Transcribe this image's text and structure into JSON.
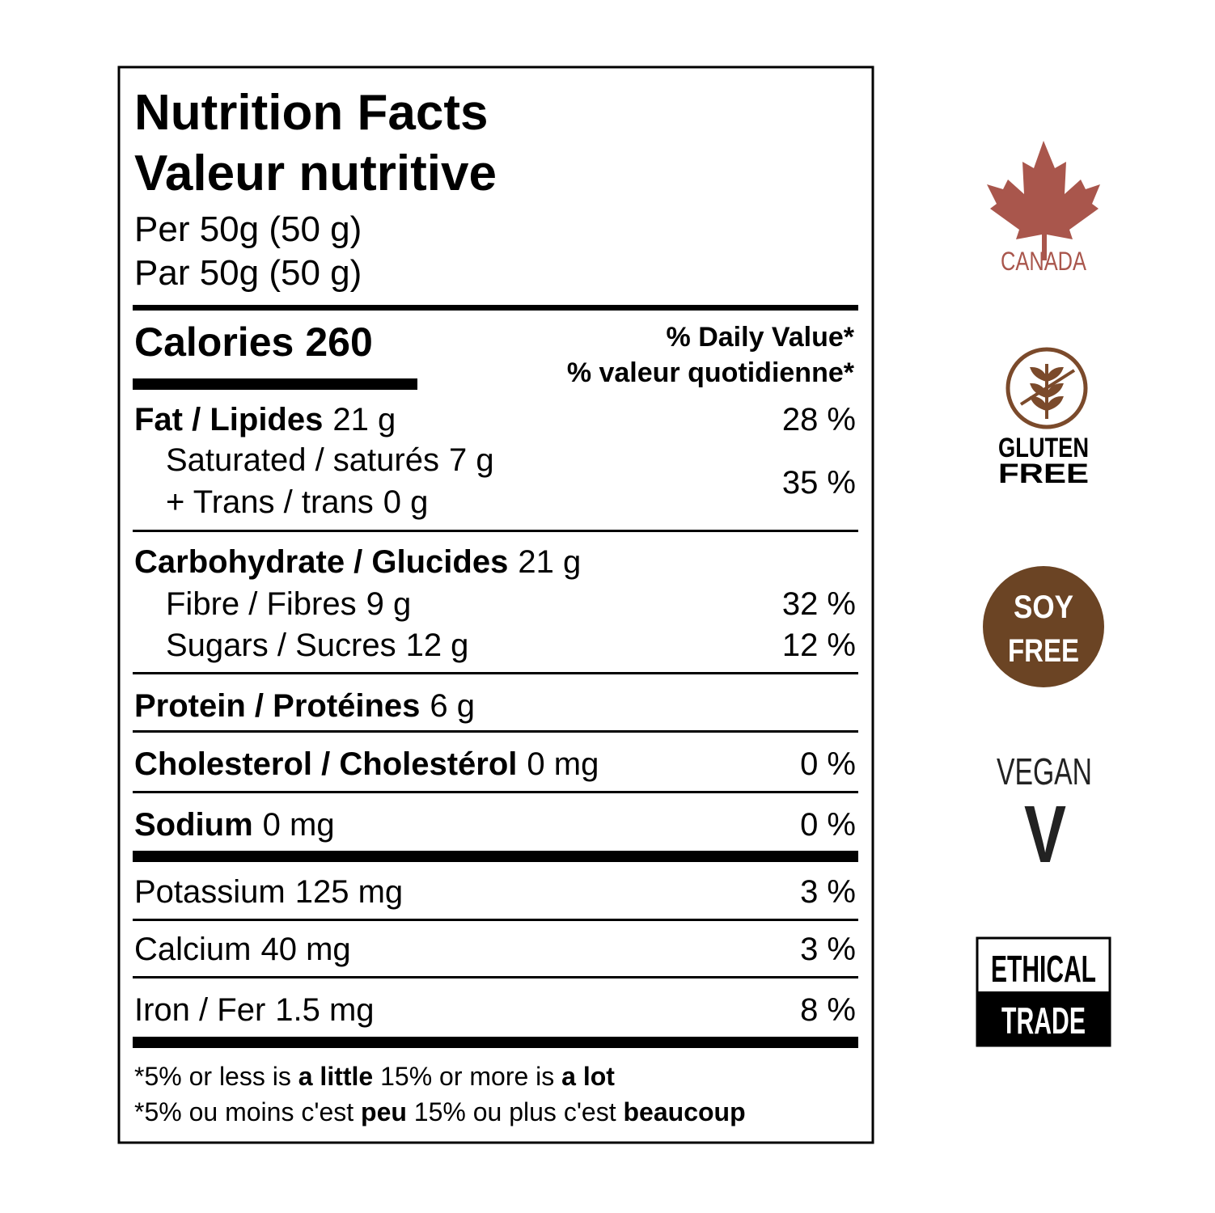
{
  "heading": {
    "title_en": "Nutrition Facts",
    "title_fr": "Valeur nutritive",
    "serving_en": "Per 50g (50 g)",
    "serving_fr": "Par 50g (50 g)"
  },
  "calories": {
    "label": "Calories",
    "value": "260"
  },
  "daily_value": {
    "en": "% Daily Value*",
    "fr": "% valeur quotidienne*"
  },
  "nutrients": {
    "fat": {
      "name": "Fat / Lipides",
      "amount": "21 g",
      "dv": "28 %",
      "sub": [
        {
          "name": "Saturated / saturés",
          "amount": "7 g"
        },
        {
          "name": "+ Trans / trans",
          "amount": "0 g"
        }
      ],
      "sub_dv": "35 %"
    },
    "carbohydrate": {
      "name": "Carbohydrate / Glucides",
      "amount": "21 g",
      "sub": [
        {
          "name": "Fibre / Fibres",
          "amount": "9 g",
          "dv": "32 %"
        },
        {
          "name": "Sugars / Sucres",
          "amount": "12 g",
          "dv": "12 %"
        }
      ]
    },
    "protein": {
      "name": "Protein / Protéines",
      "amount": "6 g"
    },
    "cholesterol": {
      "name": "Cholesterol / Cholestérol",
      "amount": "0 mg",
      "dv": "0 %"
    },
    "sodium": {
      "name": "Sodium",
      "amount": "0 mg",
      "dv": "0 %"
    },
    "potassium": {
      "name": "Potassium",
      "amount": "125 mg",
      "dv": "3 %"
    },
    "calcium": {
      "name": "Calcium",
      "amount": "40 mg",
      "dv": "3 %"
    },
    "iron": {
      "name": "Iron / Fer",
      "amount": "1.5 mg",
      "dv": "8 %"
    }
  },
  "footnote": {
    "en": [
      "*5% or less is ",
      "a little",
      " 15% or more is ",
      "a lot"
    ],
    "fr": [
      "*5% ou moins c'est ",
      "peu",
      " 15% ou plus c'est ",
      "beaucoup"
    ]
  },
  "badges": {
    "canada": "CANADA",
    "gluten_free": [
      "GLUTEN",
      "FREE"
    ],
    "soy_free": [
      "SOY",
      "FREE"
    ],
    "vegan": [
      "VEGAN",
      "V"
    ],
    "ethical_trade": [
      "ETHICAL",
      "TRADE"
    ]
  }
}
